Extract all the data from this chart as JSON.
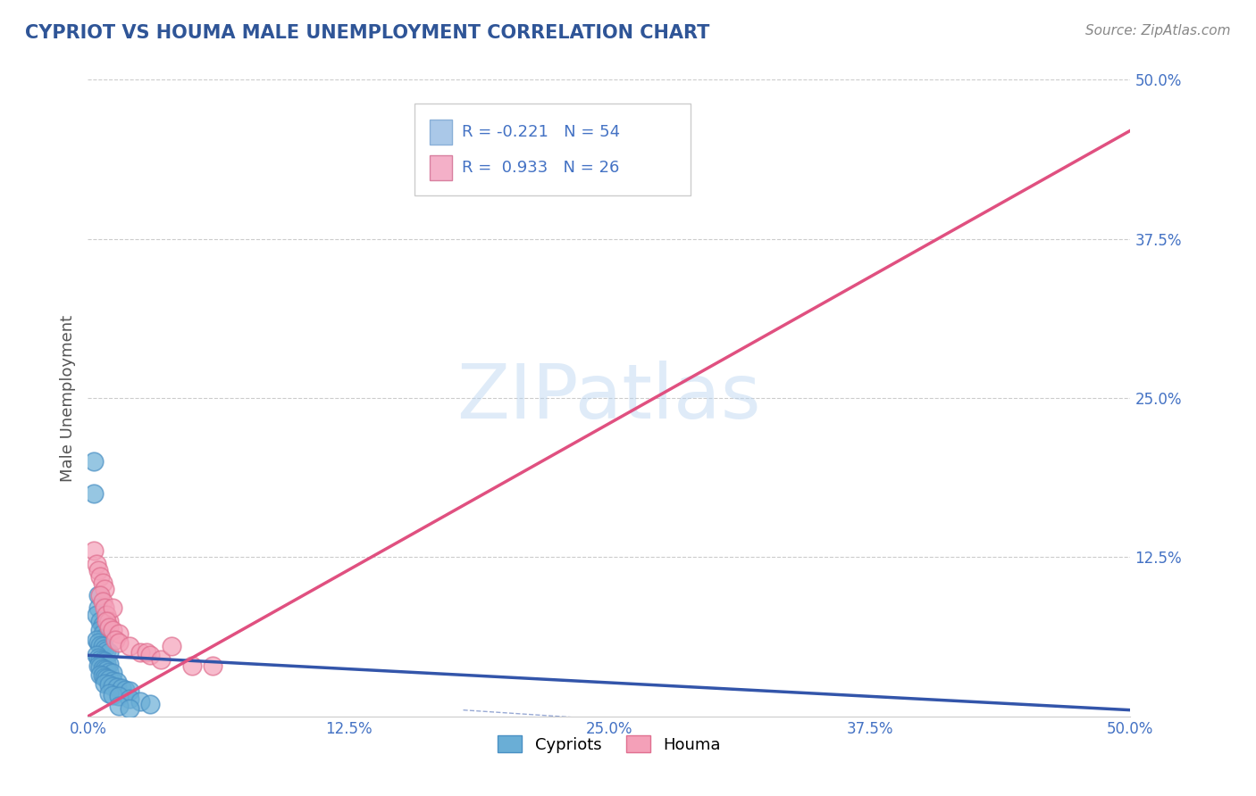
{
  "title": "CYPRIOT VS HOUMA MALE UNEMPLOYMENT CORRELATION CHART",
  "source": "Source: ZipAtlas.com",
  "ylabel": "Male Unemployment",
  "xlim": [
    0.0,
    0.5
  ],
  "ylim": [
    0.0,
    0.5
  ],
  "xticks": [
    0.0,
    0.125,
    0.25,
    0.375,
    0.5
  ],
  "yticks": [
    0.125,
    0.25,
    0.375,
    0.5
  ],
  "xticklabels": [
    "0.0%",
    "12.5%",
    "25.0%",
    "37.5%",
    "50.0%"
  ],
  "yticklabels_right": [
    "12.5%",
    "25.0%",
    "37.5%",
    "50.0%"
  ],
  "title_color": "#2F5597",
  "source_color": "#888888",
  "watermark": "ZIPatlas",
  "legend_entry1_label": "R = -0.221   N = 54",
  "legend_entry2_label": "R =  0.933   N = 26",
  "legend_color1": "#aac8e8",
  "legend_color2": "#f4b0c8",
  "cypriot_color": "#6aaed6",
  "cypriot_edge": "#4a90c4",
  "houma_color": "#f4a0b8",
  "houma_edge": "#e07090",
  "trend_cypriot_color": "#3355aa",
  "trend_houma_color": "#e05080",
  "background_color": "#ffffff",
  "grid_color": "#cccccc",
  "cypriot_scatter": [
    [
      0.003,
      0.2
    ],
    [
      0.003,
      0.175
    ],
    [
      0.005,
      0.095
    ],
    [
      0.005,
      0.085
    ],
    [
      0.004,
      0.08
    ],
    [
      0.006,
      0.075
    ],
    [
      0.007,
      0.072
    ],
    [
      0.008,
      0.07
    ],
    [
      0.006,
      0.068
    ],
    [
      0.007,
      0.065
    ],
    [
      0.008,
      0.062
    ],
    [
      0.004,
      0.06
    ],
    [
      0.005,
      0.058
    ],
    [
      0.006,
      0.056
    ],
    [
      0.007,
      0.055
    ],
    [
      0.008,
      0.053
    ],
    [
      0.009,
      0.052
    ],
    [
      0.01,
      0.05
    ],
    [
      0.004,
      0.048
    ],
    [
      0.005,
      0.046
    ],
    [
      0.006,
      0.045
    ],
    [
      0.007,
      0.044
    ],
    [
      0.008,
      0.043
    ],
    [
      0.009,
      0.042
    ],
    [
      0.01,
      0.041
    ],
    [
      0.005,
      0.04
    ],
    [
      0.006,
      0.039
    ],
    [
      0.007,
      0.038
    ],
    [
      0.008,
      0.037
    ],
    [
      0.009,
      0.036
    ],
    [
      0.01,
      0.035
    ],
    [
      0.012,
      0.034
    ],
    [
      0.006,
      0.033
    ],
    [
      0.007,
      0.032
    ],
    [
      0.008,
      0.031
    ],
    [
      0.009,
      0.03
    ],
    [
      0.01,
      0.029
    ],
    [
      0.012,
      0.028
    ],
    [
      0.014,
      0.027
    ],
    [
      0.008,
      0.026
    ],
    [
      0.01,
      0.025
    ],
    [
      0.012,
      0.024
    ],
    [
      0.014,
      0.023
    ],
    [
      0.016,
      0.022
    ],
    [
      0.018,
      0.021
    ],
    [
      0.02,
      0.02
    ],
    [
      0.01,
      0.018
    ],
    [
      0.012,
      0.017
    ],
    [
      0.015,
      0.016
    ],
    [
      0.02,
      0.014
    ],
    [
      0.025,
      0.012
    ],
    [
      0.03,
      0.01
    ],
    [
      0.015,
      0.008
    ],
    [
      0.02,
      0.006
    ]
  ],
  "houma_scatter": [
    [
      0.003,
      0.13
    ],
    [
      0.004,
      0.12
    ],
    [
      0.005,
      0.115
    ],
    [
      0.006,
      0.11
    ],
    [
      0.007,
      0.105
    ],
    [
      0.008,
      0.1
    ],
    [
      0.006,
      0.095
    ],
    [
      0.007,
      0.09
    ],
    [
      0.008,
      0.085
    ],
    [
      0.009,
      0.08
    ],
    [
      0.01,
      0.075
    ],
    [
      0.012,
      0.085
    ],
    [
      0.009,
      0.075
    ],
    [
      0.01,
      0.07
    ],
    [
      0.012,
      0.068
    ],
    [
      0.015,
      0.065
    ],
    [
      0.013,
      0.06
    ],
    [
      0.015,
      0.058
    ],
    [
      0.02,
      0.055
    ],
    [
      0.025,
      0.05
    ],
    [
      0.028,
      0.05
    ],
    [
      0.03,
      0.048
    ],
    [
      0.035,
      0.045
    ],
    [
      0.04,
      0.055
    ],
    [
      0.05,
      0.04
    ],
    [
      0.06,
      0.04
    ]
  ],
  "cypriot_trend_x": [
    0.0,
    0.5
  ],
  "cypriot_trend_y": [
    0.048,
    0.005
  ],
  "houma_trend_x": [
    0.0,
    0.5
  ],
  "houma_trend_y": [
    0.0,
    0.46
  ]
}
